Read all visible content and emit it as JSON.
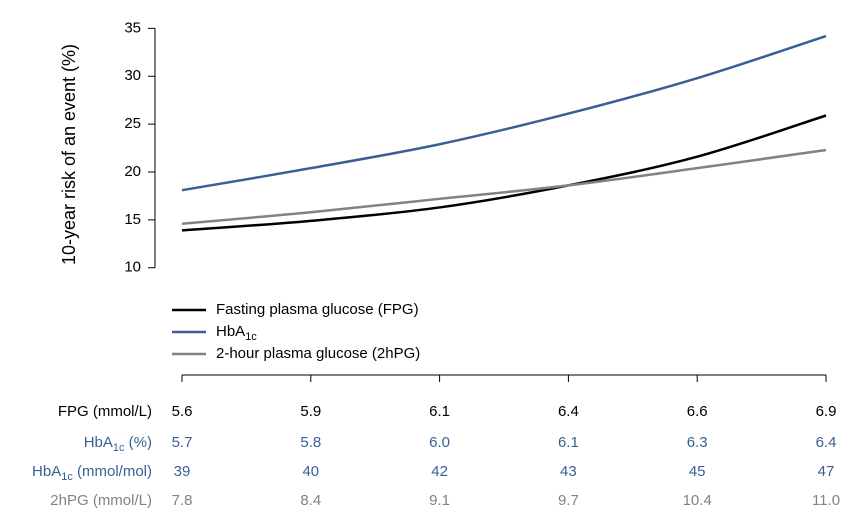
{
  "chart_data": {
    "type": "line",
    "ylabel": "10-year risk of an event (%)",
    "xlabel": "FPG (mmol/L)",
    "x": [
      5.6,
      5.86,
      6.12,
      6.38,
      6.64,
      6.9
    ],
    "xlim": [
      5.6,
      6.9
    ],
    "xticks": [
      5.6,
      {
        "value": 5.86,
        "label": "5.9"
      },
      {
        "value": 6.12,
        "label": "6.1"
      },
      {
        "value": 6.38,
        "label": "6.4"
      },
      {
        "value": 6.64,
        "label": "6.6"
      },
      6.9
    ],
    "ylim": [
      -1.2,
      36.5
    ],
    "yticks": [
      10,
      15,
      20,
      25,
      30,
      35
    ],
    "legend": "bottom-left",
    "series": [
      {
        "name": "Fasting plasma glucose (FPG)",
        "color": "#000000",
        "values": [
          13.9,
          14.9,
          16.3,
          18.6,
          21.6,
          25.9
        ]
      },
      {
        "name": [
          "HbA",
          "1c"
        ],
        "color": "#3a5f94",
        "values": [
          18.1,
          20.4,
          22.9,
          26.1,
          29.8,
          34.2
        ]
      },
      {
        "name": "2-hour plasma glucose (2hPG)",
        "color": "#8a8079",
        "values": [
          14.6,
          15.8,
          17.2,
          18.6,
          20.4,
          22.3
        ]
      }
    ],
    "extra_axes": [
      {
        "label": [
          "HbA",
          "1c",
          " (%)"
        ],
        "color": "#3a5f94",
        "ticks": [
          5.7,
          5.8,
          {
            "value": 6.0,
            "label": "6.0"
          },
          6.1,
          6.3,
          6.4
        ]
      },
      {
        "label": [
          "HbA",
          "1c",
          " (mmol/mol)"
        ],
        "color": "#3a5f94",
        "ticks": [
          39,
          40,
          42,
          43,
          45,
          47
        ]
      },
      {
        "label": "2hPG (mmol/L)",
        "color": "#8a8079",
        "ticks": [
          7.8,
          8.4,
          9.1,
          9.7,
          10.4,
          {
            "value": 11.0,
            "label": "11.0"
          }
        ]
      }
    ]
  }
}
